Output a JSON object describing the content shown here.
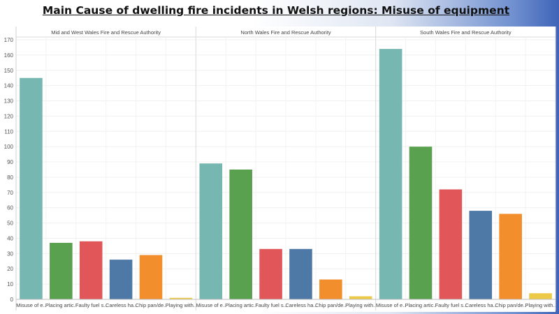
{
  "page": {
    "title": "Main Cause of dwelling fire incidents in Welsh regions: Misuse of equipment"
  },
  "chart_data": {
    "type": "bar",
    "title": "Main Cause of dwelling fire incidents in Welsh regions: Misuse of equipment",
    "xlabel": "",
    "ylabel": "",
    "ylim": [
      0,
      170
    ],
    "yticks": [
      0,
      10,
      20,
      30,
      40,
      50,
      60,
      70,
      80,
      90,
      100,
      110,
      120,
      130,
      140,
      150,
      160,
      170
    ],
    "grid": true,
    "categories": [
      "Misuse of e..",
      "Placing artic..",
      "Faulty fuel s..",
      "Careless ha..",
      "Chip pan/de..",
      "Playing with.."
    ],
    "colors": [
      "#76b7b2",
      "#59a14f",
      "#e15759",
      "#4e79a7",
      "#f28e2b",
      "#edc948"
    ],
    "panels": [
      {
        "name": "Mid and West Wales Fire and Rescue Authority",
        "values": [
          145,
          37,
          38,
          26,
          29,
          1
        ]
      },
      {
        "name": "North Wales Fire and Rescue Authority",
        "values": [
          89,
          85,
          33,
          33,
          13,
          2
        ]
      },
      {
        "name": "South Wales Fire and Rescue Authority",
        "values": [
          164,
          100,
          72,
          58,
          56,
          4
        ]
      }
    ]
  }
}
